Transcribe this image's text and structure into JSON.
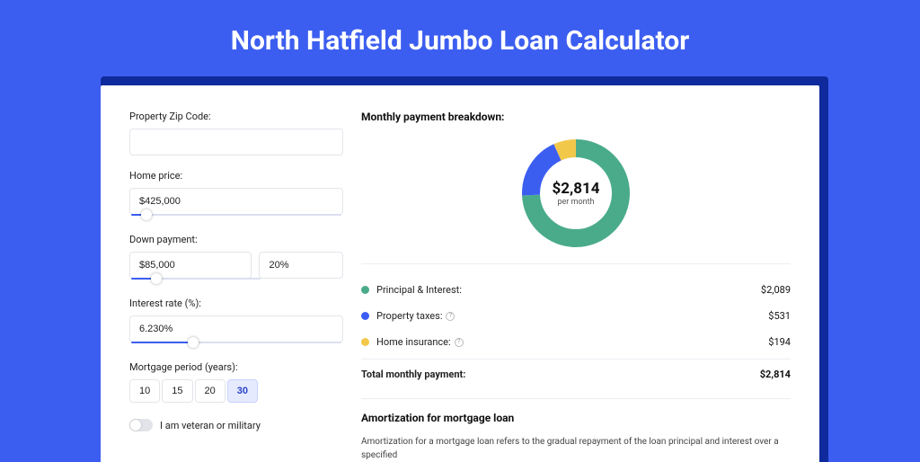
{
  "page": {
    "title": "North Hatfield Jumbo Loan Calculator",
    "bg_color": "#3c5ef0",
    "shadow_color": "#0f2a9c"
  },
  "form": {
    "zip": {
      "label": "Property Zip Code:",
      "value": ""
    },
    "home_price": {
      "label": "Home price:",
      "value": "$425,000",
      "slider_pct": 8
    },
    "down_payment": {
      "label": "Down payment:",
      "amount": "$85,000",
      "percent": "20%",
      "slider_pct": 20
    },
    "interest_rate": {
      "label": "Interest rate (%):",
      "value": "6.230%",
      "slider_pct": 30
    },
    "mortgage_period": {
      "label": "Mortgage period (years):",
      "options": [
        "10",
        "15",
        "20",
        "30"
      ],
      "selected_index": 3
    },
    "veteran": {
      "label": "I am veteran or military",
      "checked": false
    }
  },
  "breakdown": {
    "title": "Monthly payment breakdown:",
    "donut": {
      "amount": "$2,814",
      "sub": "per month",
      "series": [
        {
          "name": "principal_interest",
          "value": 2089,
          "pct": 74.2,
          "color": "#4aab8b"
        },
        {
          "name": "property_taxes",
          "value": 531,
          "pct": 18.9,
          "color": "#3c5ef0"
        },
        {
          "name": "home_insurance",
          "value": 194,
          "pct": 6.9,
          "color": "#f2c84b"
        }
      ],
      "stroke_width": 20,
      "radius": 50
    },
    "rows": [
      {
        "label": "Principal & Interest:",
        "value": "$2,089",
        "color": "#4aab8b",
        "info": false
      },
      {
        "label": "Property taxes:",
        "value": "$531",
        "color": "#3c5ef0",
        "info": true
      },
      {
        "label": "Home insurance:",
        "value": "$194",
        "color": "#f2c84b",
        "info": true
      }
    ],
    "total": {
      "label": "Total monthly payment:",
      "value": "$2,814"
    }
  },
  "amortization": {
    "title": "Amortization for mortgage loan",
    "text": "Amortization for a mortgage loan refers to the gradual repayment of the loan principal and interest over a specified"
  }
}
